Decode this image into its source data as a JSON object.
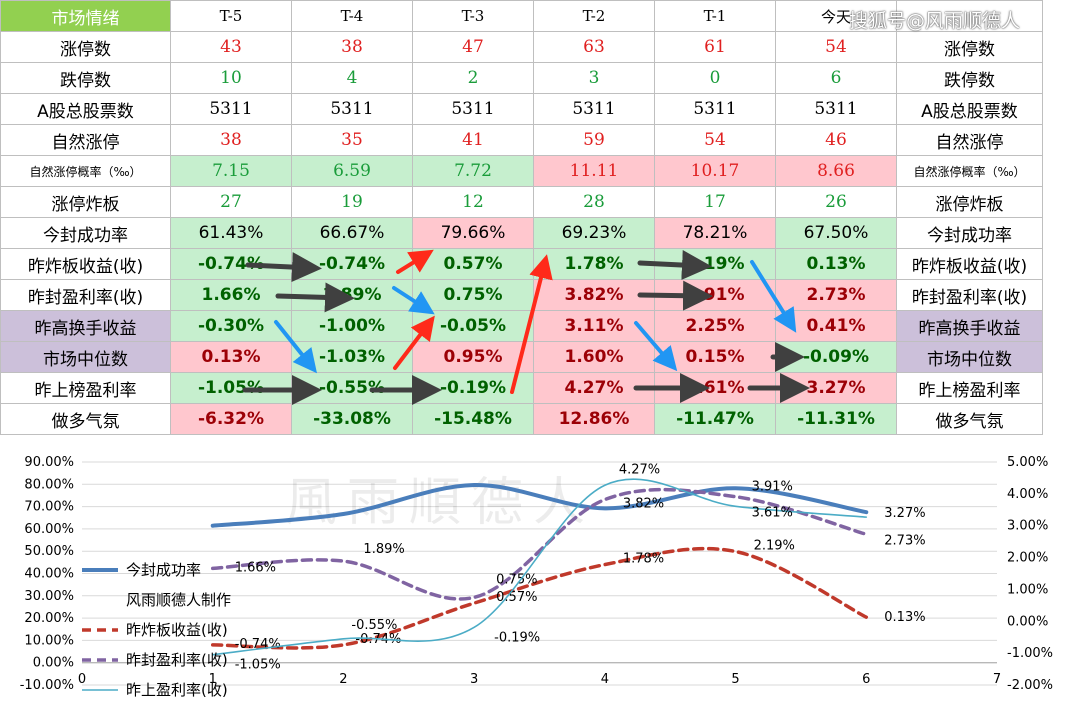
{
  "watermark": "搜狐号@风雨顺德人",
  "table": {
    "header_label": "市场情绪",
    "columns": [
      "T-5",
      "T-4",
      "T-3",
      "T-2",
      "T-1",
      "今天"
    ],
    "rows": [
      {
        "label": "涨停数",
        "values": [
          "43",
          "38",
          "47",
          "63",
          "61",
          "54"
        ],
        "text": "red"
      },
      {
        "label": "跌停数",
        "values": [
          "10",
          "4",
          "2",
          "3",
          "0",
          "6"
        ],
        "text": "green"
      },
      {
        "label": "A股总股票数",
        "values": [
          "5311",
          "5311",
          "5311",
          "5311",
          "5311",
          "5311"
        ],
        "text": "black"
      },
      {
        "label": "自然涨停",
        "values": [
          "38",
          "35",
          "41",
          "59",
          "54",
          "46"
        ],
        "text": "red"
      },
      {
        "label": "自然涨停概率（‰）",
        "values": [
          "7.15",
          "6.59",
          "7.72",
          "11.11",
          "10.17",
          "8.66"
        ],
        "text": "mixed",
        "small": true,
        "cell_text": [
          "green",
          "green",
          "green",
          "red",
          "red",
          "red"
        ],
        "cell_bg": [
          "g",
          "g",
          "g",
          "r",
          "r",
          "r"
        ]
      },
      {
        "label": "涨停炸板",
        "values": [
          "27",
          "19",
          "12",
          "28",
          "17",
          "26"
        ],
        "text": "green"
      },
      {
        "label": "今封成功率",
        "values": [
          "61.43%",
          "66.67%",
          "79.66%",
          "69.23%",
          "78.21%",
          "67.50%"
        ],
        "text": "pctk",
        "cell_bg": [
          "g",
          "g",
          "r",
          "g",
          "r",
          "g"
        ]
      },
      {
        "label": "昨炸板收益(收)",
        "values": [
          "-0.74%",
          "-0.74%",
          "0.57%",
          "1.78%",
          "2.19%",
          "0.13%"
        ],
        "text": "pct",
        "cell_bg": [
          "g",
          "g",
          "g",
          "g",
          "g",
          "g"
        ]
      },
      {
        "label": "昨封盈利率(收)",
        "values": [
          "1.66%",
          "1.89%",
          "0.75%",
          "3.82%",
          "3.91%",
          "2.73%"
        ],
        "text": "pct",
        "cell_bg": [
          "g",
          "g",
          "g",
          "r",
          "r",
          "r"
        ]
      },
      {
        "label": "昨高换手收益",
        "values": [
          "-0.30%",
          "-1.00%",
          "-0.05%",
          "3.11%",
          "2.25%",
          "0.41%"
        ],
        "text": "pct",
        "purple": true,
        "cell_bg": [
          "g",
          "g",
          "g",
          "r",
          "r",
          "r"
        ]
      },
      {
        "label": "市场中位数",
        "values": [
          "0.13%",
          "-1.03%",
          "0.95%",
          "1.60%",
          "0.15%",
          "-0.09%"
        ],
        "text": "pct",
        "purple": true,
        "cell_bg": [
          "r",
          "g",
          "r",
          "r",
          "r",
          "g"
        ]
      },
      {
        "label": "昨上榜盈利率",
        "values": [
          "-1.05%",
          "-0.55%",
          "-0.19%",
          "4.27%",
          "3.61%",
          "3.27%"
        ],
        "text": "pct",
        "cell_bg": [
          "g",
          "g",
          "g",
          "r",
          "r",
          "r"
        ]
      },
      {
        "label": "做多气氛",
        "values": [
          "-6.32%",
          "-33.08%",
          "-15.48%",
          "12.86%",
          "-11.47%",
          "-11.31%"
        ],
        "text": "pct",
        "cell_bg": [
          "r",
          "g",
          "g",
          "r",
          "g",
          "g"
        ]
      }
    ]
  },
  "colors": {
    "header_green": "#92d050",
    "cell_green": "#c6efce",
    "cell_red": "#ffc7ce",
    "purple": "#ccc0da",
    "arrow_dark": "#404040",
    "arrow_red": "#ff2a1a",
    "arrow_blue": "#2196f3"
  },
  "chart_data": {
    "type": "line",
    "title": "",
    "x": [
      1,
      2,
      3,
      4,
      5,
      6
    ],
    "xlim": [
      0,
      7
    ],
    "x_ticks": [
      "0",
      "1",
      "2",
      "3",
      "4",
      "5",
      "6",
      "7"
    ],
    "y_left_lim": [
      -10,
      90
    ],
    "y_left_ticks": [
      "-10.00%",
      "0.00%",
      "10.00%",
      "20.00%",
      "30.00%",
      "40.00%",
      "50.00%",
      "60.00%",
      "70.00%",
      "80.00%",
      "90.00%"
    ],
    "y_right_lim": [
      -2,
      5
    ],
    "y_right_ticks": [
      "-2.00%",
      "-1.00%",
      "0.00%",
      "1.00%",
      "2.00%",
      "3.00%",
      "4.00%",
      "5.00%"
    ],
    "grid": "horizontal",
    "legend_placement": "left-middle",
    "legend_note": "风雨顺德人制作",
    "series": [
      {
        "name": "今封成功率",
        "axis": "left",
        "style": "solid-thick",
        "color": "#4a7ebb",
        "values": [
          61.43,
          66.67,
          79.66,
          69.23,
          78.21,
          67.5
        ]
      },
      {
        "name": "昨炸板收益(收)",
        "axis": "right",
        "style": "dashed",
        "color": "#c0392b",
        "values": [
          -0.74,
          -0.74,
          0.57,
          1.78,
          2.19,
          0.13
        ],
        "labels": [
          "-0.74%",
          "-0.74%",
          "0.57%",
          "1.78%",
          "2.19%",
          "0.13%"
        ]
      },
      {
        "name": "昨封盈利率(收)",
        "axis": "right",
        "style": "dashed",
        "color": "#8064a2",
        "values": [
          1.66,
          1.89,
          0.75,
          3.82,
          3.91,
          2.73
        ],
        "labels": [
          "1.66%",
          "1.89%",
          "0.75%",
          "3.82%",
          "3.91%",
          "2.73%"
        ]
      },
      {
        "name": "昨上盈利率(收)",
        "axis": "right",
        "style": "solid-thin",
        "color": "#4bacc6",
        "values": [
          -1.05,
          -0.55,
          -0.19,
          4.27,
          3.61,
          3.27
        ],
        "labels": [
          "-1.05%",
          "-0.55%",
          "-0.19%",
          "4.27%",
          "3.61%",
          "3.27%"
        ]
      }
    ]
  }
}
